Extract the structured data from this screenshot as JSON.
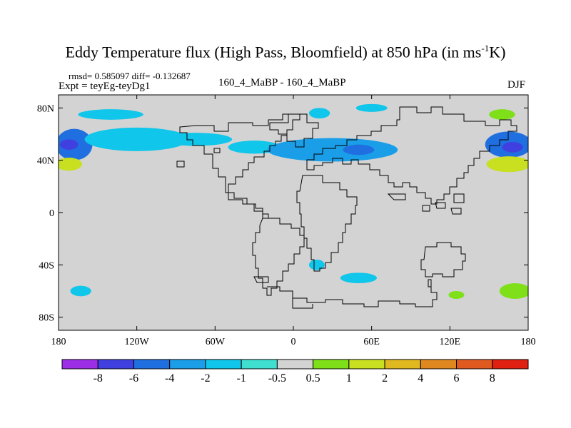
{
  "figure": {
    "title": "Eddy Temperature flux (High Pass, Bloomfield) at 850 hPa (in ms",
    "title_sup": "-1",
    "title_end": "K)",
    "stats": "rmsd= 0.585097 diff= -0.132687",
    "expt": "Expt = teyEg-teyDg1",
    "center_label": "160_4_MaBP - 160_4_MaBP",
    "season": "DJF"
  },
  "map": {
    "projection": "cylindrical equidistant",
    "lon_range": [
      -180,
      180
    ],
    "lat_range": [
      -90,
      90
    ],
    "background_color": "#d3d3d3",
    "coastline_color": "#000000",
    "lat_ticks": [
      {
        "value": 80,
        "label": "80N"
      },
      {
        "value": 40,
        "label": "40N"
      },
      {
        "value": 0,
        "label": "0"
      },
      {
        "value": -40,
        "label": "40S"
      },
      {
        "value": -80,
        "label": "80S"
      }
    ],
    "lon_ticks": [
      {
        "value": -180,
        "label": "180"
      },
      {
        "value": -120,
        "label": "120W"
      },
      {
        "value": -60,
        "label": "60W"
      },
      {
        "value": 0,
        "label": "0"
      },
      {
        "value": 60,
        "label": "60E"
      },
      {
        "value": 120,
        "label": "120E"
      },
      {
        "value": 180,
        "label": "180"
      }
    ]
  },
  "colorbar": {
    "colors": [
      "#9d2ee8",
      "#4040e0",
      "#1f6fe0",
      "#1b9ee8",
      "#10c6ea",
      "#3fe0d0",
      "#d3d3d3",
      "#7fe01a",
      "#c8e020",
      "#e0b820",
      "#e08820",
      "#e05a20",
      "#e02010"
    ],
    "labels": [
      "-8",
      "-6",
      "-4",
      "-2",
      "-1",
      "-0.5",
      "0.5",
      "1",
      "2",
      "4",
      "6",
      "8"
    ]
  },
  "chart_data": {
    "type": "heatmap",
    "title": "Eddy Temperature flux (High Pass, Bloomfield) at 850 hPa (in ms-1K)",
    "levels": [
      -8,
      -6,
      -4,
      -2,
      -1,
      -0.5,
      0.5,
      1,
      2,
      4,
      6,
      8
    ],
    "anomalies": [
      {
        "lon": -168,
        "lat": 52,
        "value": -4,
        "shape": "band",
        "dlon": 14,
        "dlat": 12
      },
      {
        "lon": -172,
        "lat": 52,
        "value": -6,
        "shape": "core",
        "dlon": 7,
        "dlat": 4
      },
      {
        "lon": -120,
        "lat": 56,
        "value": -1,
        "shape": "band",
        "dlon": 40,
        "dlat": 9
      },
      {
        "lon": -140,
        "lat": 75,
        "value": -1,
        "shape": "band",
        "dlon": 25,
        "dlat": 4
      },
      {
        "lon": -75,
        "lat": 56,
        "value": -1,
        "shape": "band",
        "dlon": 28,
        "dlat": 5
      },
      {
        "lon": -30,
        "lat": 50,
        "value": -1,
        "shape": "band",
        "dlon": 20,
        "dlat": 5
      },
      {
        "lon": 30,
        "lat": 48,
        "value": -2,
        "shape": "band",
        "dlon": 50,
        "dlat": 9
      },
      {
        "lon": 50,
        "lat": 48,
        "value": -4,
        "shape": "core",
        "dlon": 12,
        "dlat": 4
      },
      {
        "lon": 20,
        "lat": 76,
        "value": -1,
        "shape": "band",
        "dlon": 8,
        "dlat": 4
      },
      {
        "lon": 60,
        "lat": 80,
        "value": -1,
        "shape": "band",
        "dlon": 12,
        "dlat": 3
      },
      {
        "lon": 165,
        "lat": 52,
        "value": -4,
        "shape": "band",
        "dlon": 18,
        "dlat": 10
      },
      {
        "lon": 168,
        "lat": 50,
        "value": -6,
        "shape": "core",
        "dlon": 8,
        "dlat": 4
      },
      {
        "lon": 165,
        "lat": 37,
        "value": 2,
        "shape": "band",
        "dlon": 17,
        "dlat": 6
      },
      {
        "lon": -172,
        "lat": 37,
        "value": 2,
        "shape": "band",
        "dlon": 10,
        "dlat": 5
      },
      {
        "lon": 160,
        "lat": 75,
        "value": 1,
        "shape": "band",
        "dlon": 10,
        "dlat": 4
      },
      {
        "lon": 18,
        "lat": -40,
        "value": -1,
        "shape": "band",
        "dlon": 6,
        "dlat": 4
      },
      {
        "lon": 50,
        "lat": -50,
        "value": -1,
        "shape": "band",
        "dlon": 14,
        "dlat": 4
      },
      {
        "lon": 170,
        "lat": -60,
        "value": 1,
        "shape": "band",
        "dlon": 12,
        "dlat": 6
      },
      {
        "lon": 125,
        "lat": -63,
        "value": 1,
        "shape": "band",
        "dlon": 6,
        "dlat": 3
      },
      {
        "lon": -163,
        "lat": -60,
        "value": -1,
        "shape": "band",
        "dlon": 8,
        "dlat": 4
      }
    ]
  }
}
